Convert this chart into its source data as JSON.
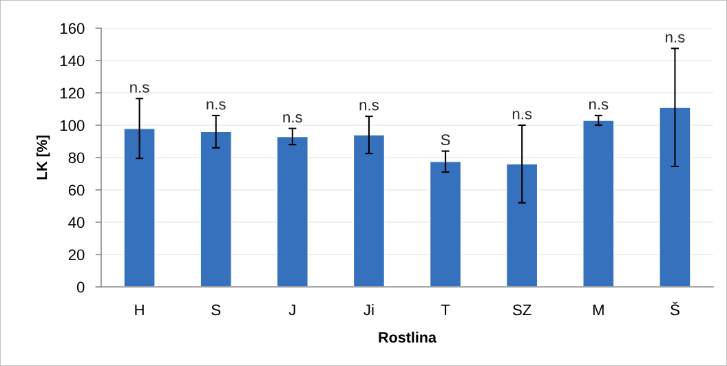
{
  "chart_data": {
    "type": "bar",
    "xlabel": "Rostlina",
    "ylabel": "LK [%]",
    "categories": [
      "H",
      "S",
      "J",
      "Ji",
      "T",
      "SZ",
      "M",
      "Š"
    ],
    "values": [
      98,
      96,
      93,
      94,
      77.5,
      76,
      103,
      111
    ],
    "errors": [
      18.5,
      10,
      5,
      11.5,
      6.5,
      24,
      3,
      36.5
    ],
    "color": "#3571bd",
    "ylim": [
      0,
      160
    ],
    "yticks": [
      0,
      20,
      40,
      60,
      80,
      100,
      120,
      140,
      160
    ],
    "grid": "y",
    "annotations": [
      {
        "text": "n.s",
        "x": "H",
        "y": 116.5
      },
      {
        "text": "n.s",
        "x": "S",
        "y": 106
      },
      {
        "text": "n.s",
        "x": "J",
        "y": 98
      },
      {
        "text": "n.s",
        "x": "Ji",
        "y": 105.5
      },
      {
        "text": "S",
        "x": "T",
        "y": 84
      },
      {
        "text": "n.s",
        "x": "SZ",
        "y": 100
      },
      {
        "text": "n.s",
        "x": "M",
        "y": 106
      },
      {
        "text": "n.s",
        "x": "Š",
        "y": 147.5
      }
    ]
  }
}
